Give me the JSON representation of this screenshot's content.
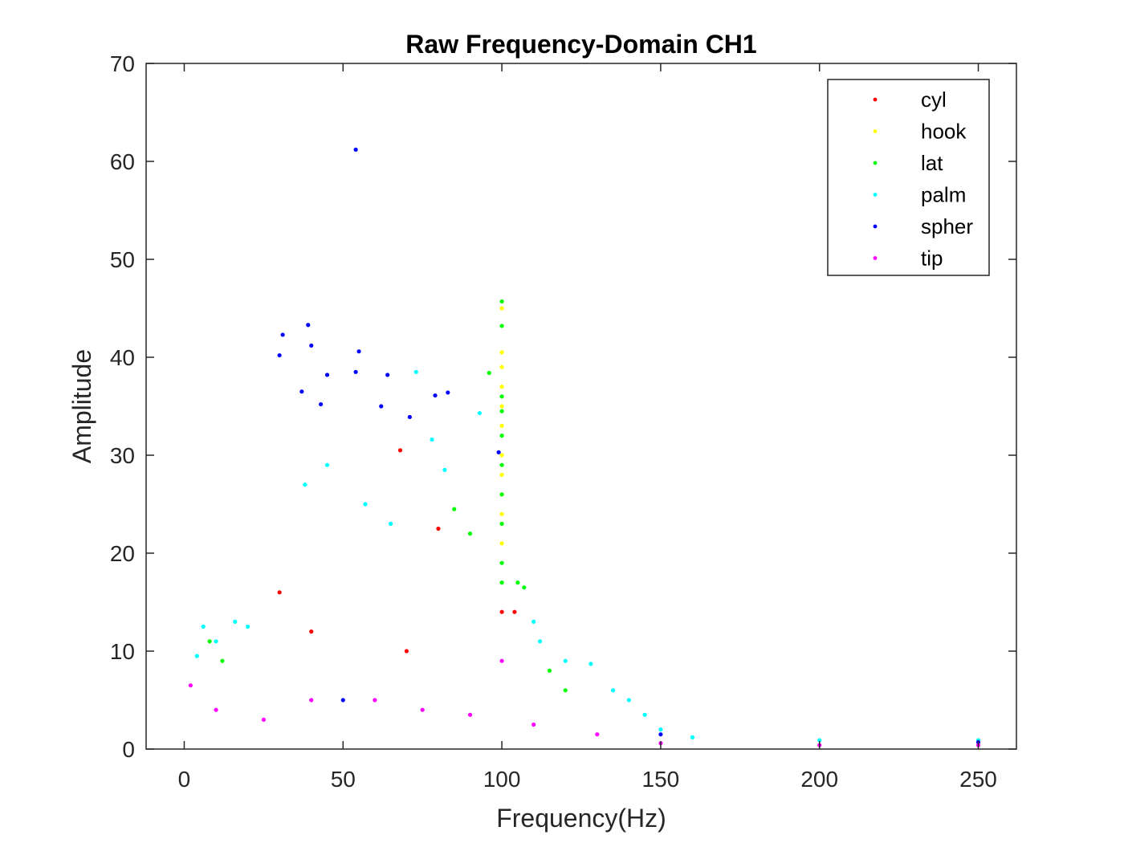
{
  "chart_data": {
    "type": "scatter",
    "title": "Raw Frequency-Domain CH1",
    "xlabel": "Frequency(Hz)",
    "ylabel": "Amplitude",
    "xlim": [
      -12,
      262
    ],
    "ylim": [
      0,
      70
    ],
    "xticks": [
      0,
      50,
      100,
      150,
      200,
      250
    ],
    "yticks": [
      0,
      10,
      20,
      30,
      40,
      50,
      60,
      70
    ],
    "xtick_labels": [
      "0",
      "50",
      "100",
      "150",
      "200",
      "250"
    ],
    "ytick_labels": [
      "0",
      "10",
      "20",
      "30",
      "40",
      "50",
      "60",
      "70"
    ],
    "grid": false,
    "legend_position": "top-right",
    "series": [
      {
        "name": "cyl",
        "color": "#ff0000",
        "points": [
          [
            68,
            30.5
          ],
          [
            80,
            22.5
          ],
          [
            100,
            14
          ],
          [
            104,
            14
          ],
          [
            40,
            12
          ],
          [
            70,
            10
          ],
          [
            30,
            16
          ]
        ]
      },
      {
        "name": "hook",
        "color": "#ffff00",
        "points": [
          [
            100,
            45
          ],
          [
            100,
            40.5
          ],
          [
            100,
            39
          ],
          [
            100,
            37
          ],
          [
            100,
            35
          ],
          [
            100,
            33
          ],
          [
            100,
            30
          ],
          [
            100,
            28
          ],
          [
            100,
            26
          ],
          [
            100,
            24
          ],
          [
            100,
            21
          ]
        ]
      },
      {
        "name": "lat",
        "color": "#00ff00",
        "points": [
          [
            100,
            45.7
          ],
          [
            100,
            43.2
          ],
          [
            100,
            36
          ],
          [
            100,
            34.5
          ],
          [
            100,
            32
          ],
          [
            100,
            29
          ],
          [
            100,
            26
          ],
          [
            100,
            23
          ],
          [
            100,
            19
          ],
          [
            100,
            17
          ],
          [
            96,
            38.4
          ],
          [
            105,
            17
          ],
          [
            107,
            16.5
          ],
          [
            85,
            24.5
          ],
          [
            90,
            22
          ],
          [
            8,
            11
          ],
          [
            12,
            9
          ],
          [
            115,
            8
          ],
          [
            120,
            6
          ]
        ]
      },
      {
        "name": "palm",
        "color": "#00ffff",
        "points": [
          [
            73,
            38.5
          ],
          [
            93,
            34.3
          ],
          [
            78,
            31.6
          ],
          [
            82,
            28.5
          ],
          [
            57,
            25
          ],
          [
            65,
            23
          ],
          [
            38,
            27
          ],
          [
            45,
            29
          ],
          [
            4,
            9.5
          ],
          [
            6,
            12.5
          ],
          [
            10,
            11
          ],
          [
            16,
            13
          ],
          [
            20,
            12.5
          ],
          [
            110,
            13
          ],
          [
            112,
            11
          ],
          [
            120,
            9
          ],
          [
            128,
            8.7
          ],
          [
            135,
            6
          ],
          [
            140,
            5
          ],
          [
            145,
            3.5
          ],
          [
            150,
            2
          ],
          [
            160,
            1.2
          ],
          [
            200,
            0.9
          ],
          [
            250,
            0.9
          ]
        ]
      },
      {
        "name": "spher",
        "color": "#0000ff",
        "points": [
          [
            54,
            61.2
          ],
          [
            39,
            43.3
          ],
          [
            31,
            42.3
          ],
          [
            55,
            40.6
          ],
          [
            40,
            41.2
          ],
          [
            30,
            40.2
          ],
          [
            45,
            38.2
          ],
          [
            54,
            38.5
          ],
          [
            64,
            38.2
          ],
          [
            79,
            36.1
          ],
          [
            83,
            36.4
          ],
          [
            37,
            36.5
          ],
          [
            43,
            35.2
          ],
          [
            62,
            35
          ],
          [
            71,
            33.9
          ],
          [
            99,
            30.3
          ],
          [
            50,
            5
          ],
          [
            150,
            1.5
          ],
          [
            250,
            0.7
          ]
        ]
      },
      {
        "name": "tip",
        "color": "#ff00ff",
        "points": [
          [
            2,
            6.5
          ],
          [
            10,
            4
          ],
          [
            25,
            3
          ],
          [
            40,
            5
          ],
          [
            60,
            5
          ],
          [
            75,
            4
          ],
          [
            90,
            3.5
          ],
          [
            100,
            9
          ],
          [
            110,
            2.5
          ],
          [
            130,
            1.5
          ],
          [
            150,
            0.6
          ],
          [
            200,
            0.4
          ],
          [
            250,
            0.4
          ]
        ]
      }
    ]
  }
}
